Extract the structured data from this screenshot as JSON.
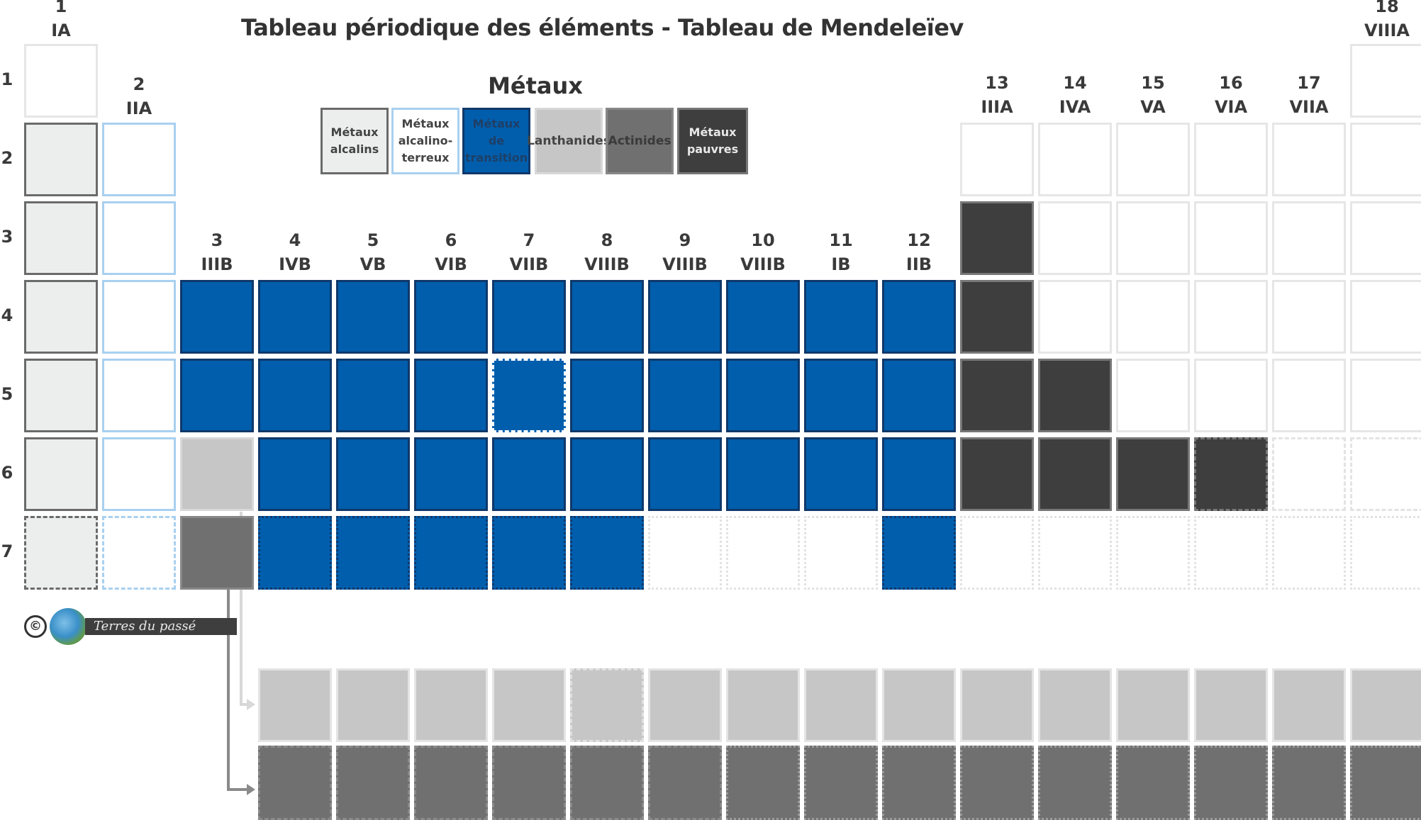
{
  "title": "Tableau périodique des éléments - Tableau de Mendeleïev",
  "legend": {
    "heading": "Métaux",
    "items": [
      {
        "key": "alkali",
        "label": "Métaux alcalins"
      },
      {
        "key": "alkaline_earth",
        "label": "Métaux alcalino-terreux"
      },
      {
        "key": "transition",
        "label": "Métaux de transition"
      },
      {
        "key": "lanthanides",
        "label": "Lanthanides"
      },
      {
        "key": "actinides",
        "label": "Actinides"
      },
      {
        "key": "poor",
        "label": "Métaux pauvres"
      }
    ]
  },
  "group_headers": [
    {
      "num": "1",
      "roman": "IA"
    },
    {
      "num": "2",
      "roman": "IIA"
    },
    {
      "num": "3",
      "roman": "IIIB"
    },
    {
      "num": "4",
      "roman": "IVB"
    },
    {
      "num": "5",
      "roman": "VB"
    },
    {
      "num": "6",
      "roman": "VIB"
    },
    {
      "num": "7",
      "roman": "VIIB"
    },
    {
      "num": "8",
      "roman": "VIIIB"
    },
    {
      "num": "9",
      "roman": "VIIIB"
    },
    {
      "num": "10",
      "roman": "VIIIB"
    },
    {
      "num": "11",
      "roman": "IB"
    },
    {
      "num": "12",
      "roman": "IIB"
    },
    {
      "num": "13",
      "roman": "IIIA"
    },
    {
      "num": "14",
      "roman": "IVA"
    },
    {
      "num": "15",
      "roman": "VA"
    },
    {
      "num": "16",
      "roman": "VIA"
    },
    {
      "num": "17",
      "roman": "VIIA"
    },
    {
      "num": "18",
      "roman": "VIIIA"
    }
  ],
  "periods": [
    "1",
    "2",
    "3",
    "4",
    "5",
    "6",
    "7"
  ],
  "category_colors": {
    "alkali": "#eceeed",
    "alkaline_earth": "#ffffff",
    "transition": "#005eac",
    "lanthanides": "#c5c6c5",
    "actinides": "#707070",
    "poor": "#3e3e3e",
    "other": "#ffffff"
  },
  "cells": [
    {
      "period": 1,
      "group": 1,
      "category": "other",
      "style": "solid"
    },
    {
      "period": 1,
      "group": 18,
      "category": "other",
      "style": "solid"
    },
    {
      "period": 2,
      "group": 1,
      "category": "alkali",
      "style": "solid"
    },
    {
      "period": 2,
      "group": 2,
      "category": "alkaline_earth",
      "style": "solid"
    },
    {
      "period": 2,
      "group": 13,
      "category": "other",
      "style": "solid"
    },
    {
      "period": 2,
      "group": 14,
      "category": "other",
      "style": "solid"
    },
    {
      "period": 2,
      "group": 15,
      "category": "other",
      "style": "solid"
    },
    {
      "period": 2,
      "group": 16,
      "category": "other",
      "style": "solid"
    },
    {
      "period": 2,
      "group": 17,
      "category": "other",
      "style": "solid"
    },
    {
      "period": 2,
      "group": 18,
      "category": "other",
      "style": "solid"
    },
    {
      "period": 3,
      "group": 1,
      "category": "alkali",
      "style": "solid"
    },
    {
      "period": 3,
      "group": 2,
      "category": "alkaline_earth",
      "style": "solid"
    },
    {
      "period": 3,
      "group": 13,
      "category": "poor",
      "style": "solid"
    },
    {
      "period": 3,
      "group": 14,
      "category": "other",
      "style": "solid"
    },
    {
      "period": 3,
      "group": 15,
      "category": "other",
      "style": "solid"
    },
    {
      "period": 3,
      "group": 16,
      "category": "other",
      "style": "solid"
    },
    {
      "period": 3,
      "group": 17,
      "category": "other",
      "style": "solid"
    },
    {
      "period": 3,
      "group": 18,
      "category": "other",
      "style": "solid"
    },
    {
      "period": 4,
      "group": 1,
      "category": "alkali",
      "style": "solid"
    },
    {
      "period": 4,
      "group": 2,
      "category": "alkaline_earth",
      "style": "solid"
    },
    {
      "period": 4,
      "group": 3,
      "category": "transition",
      "style": "solid"
    },
    {
      "period": 4,
      "group": 4,
      "category": "transition",
      "style": "solid"
    },
    {
      "period": 4,
      "group": 5,
      "category": "transition",
      "style": "solid"
    },
    {
      "period": 4,
      "group": 6,
      "category": "transition",
      "style": "solid"
    },
    {
      "period": 4,
      "group": 7,
      "category": "transition",
      "style": "solid"
    },
    {
      "period": 4,
      "group": 8,
      "category": "transition",
      "style": "solid"
    },
    {
      "period": 4,
      "group": 9,
      "category": "transition",
      "style": "solid"
    },
    {
      "period": 4,
      "group": 10,
      "category": "transition",
      "style": "solid"
    },
    {
      "period": 4,
      "group": 11,
      "category": "transition",
      "style": "solid"
    },
    {
      "period": 4,
      "group": 12,
      "category": "transition",
      "style": "solid"
    },
    {
      "period": 4,
      "group": 13,
      "category": "poor",
      "style": "solid"
    },
    {
      "period": 4,
      "group": 14,
      "category": "other",
      "style": "solid"
    },
    {
      "period": 4,
      "group": 15,
      "category": "other",
      "style": "solid"
    },
    {
      "period": 4,
      "group": 16,
      "category": "other",
      "style": "solid"
    },
    {
      "period": 4,
      "group": 17,
      "category": "other",
      "style": "solid"
    },
    {
      "period": 4,
      "group": 18,
      "category": "other",
      "style": "solid"
    },
    {
      "period": 5,
      "group": 1,
      "category": "alkali",
      "style": "solid"
    },
    {
      "period": 5,
      "group": 2,
      "category": "alkaline_earth",
      "style": "solid"
    },
    {
      "period": 5,
      "group": 3,
      "category": "transition",
      "style": "solid"
    },
    {
      "period": 5,
      "group": 4,
      "category": "transition",
      "style": "solid"
    },
    {
      "period": 5,
      "group": 5,
      "category": "transition",
      "style": "solid"
    },
    {
      "period": 5,
      "group": 6,
      "category": "transition",
      "style": "solid"
    },
    {
      "period": 5,
      "group": 7,
      "category": "transition",
      "style": "dashed"
    },
    {
      "period": 5,
      "group": 8,
      "category": "transition",
      "style": "solid"
    },
    {
      "period": 5,
      "group": 9,
      "category": "transition",
      "style": "solid"
    },
    {
      "period": 5,
      "group": 10,
      "category": "transition",
      "style": "solid"
    },
    {
      "period": 5,
      "group": 11,
      "category": "transition",
      "style": "solid"
    },
    {
      "period": 5,
      "group": 12,
      "category": "transition",
      "style": "solid"
    },
    {
      "period": 5,
      "group": 13,
      "category": "poor",
      "style": "solid"
    },
    {
      "period": 5,
      "group": 14,
      "category": "poor",
      "style": "solid"
    },
    {
      "period": 5,
      "group": 15,
      "category": "other",
      "style": "solid"
    },
    {
      "period": 5,
      "group": 16,
      "category": "other",
      "style": "solid"
    },
    {
      "period": 5,
      "group": 17,
      "category": "other",
      "style": "solid"
    },
    {
      "period": 5,
      "group": 18,
      "category": "other",
      "style": "solid"
    },
    {
      "period": 6,
      "group": 1,
      "category": "alkali",
      "style": "solid"
    },
    {
      "period": 6,
      "group": 2,
      "category": "alkaline_earth",
      "style": "solid"
    },
    {
      "period": 6,
      "group": 3,
      "category": "lanthanides",
      "style": "solid"
    },
    {
      "period": 6,
      "group": 4,
      "category": "transition",
      "style": "solid"
    },
    {
      "period": 6,
      "group": 5,
      "category": "transition",
      "style": "solid"
    },
    {
      "period": 6,
      "group": 6,
      "category": "transition",
      "style": "solid"
    },
    {
      "period": 6,
      "group": 7,
      "category": "transition",
      "style": "solid"
    },
    {
      "period": 6,
      "group": 8,
      "category": "transition",
      "style": "solid"
    },
    {
      "period": 6,
      "group": 9,
      "category": "transition",
      "style": "solid"
    },
    {
      "period": 6,
      "group": 10,
      "category": "transition",
      "style": "solid"
    },
    {
      "period": 6,
      "group": 11,
      "category": "transition",
      "style": "solid"
    },
    {
      "period": 6,
      "group": 12,
      "category": "transition",
      "style": "solid"
    },
    {
      "period": 6,
      "group": 13,
      "category": "poor",
      "style": "solid"
    },
    {
      "period": 6,
      "group": 14,
      "category": "poor",
      "style": "solid"
    },
    {
      "period": 6,
      "group": 15,
      "category": "poor",
      "style": "solid"
    },
    {
      "period": 6,
      "group": 16,
      "category": "poor",
      "style": "dashed"
    },
    {
      "period": 6,
      "group": 17,
      "category": "other",
      "style": "dashed"
    },
    {
      "period": 6,
      "group": 18,
      "category": "other",
      "style": "dashed"
    },
    {
      "period": 7,
      "group": 1,
      "category": "alkali",
      "style": "dashed"
    },
    {
      "period": 7,
      "group": 2,
      "category": "alkaline_earth",
      "style": "dashed"
    },
    {
      "period": 7,
      "group": 3,
      "category": "actinides",
      "style": "solid"
    },
    {
      "period": 7,
      "group": 4,
      "category": "transition",
      "style": "dotted"
    },
    {
      "period": 7,
      "group": 5,
      "category": "transition",
      "style": "dotted"
    },
    {
      "period": 7,
      "group": 6,
      "category": "transition",
      "style": "dotted"
    },
    {
      "period": 7,
      "group": 7,
      "category": "transition",
      "style": "dotted"
    },
    {
      "period": 7,
      "group": 8,
      "category": "transition",
      "style": "dotted"
    },
    {
      "period": 7,
      "group": 9,
      "category": "other",
      "style": "dotted"
    },
    {
      "period": 7,
      "group": 10,
      "category": "other",
      "style": "dotted"
    },
    {
      "period": 7,
      "group": 11,
      "category": "other",
      "style": "dotted"
    },
    {
      "period": 7,
      "group": 12,
      "category": "transition",
      "style": "dotted"
    },
    {
      "period": 7,
      "group": 13,
      "category": "other",
      "style": "dotted"
    },
    {
      "period": 7,
      "group": 14,
      "category": "other",
      "style": "dotted"
    },
    {
      "period": 7,
      "group": 15,
      "category": "other",
      "style": "dotted"
    },
    {
      "period": 7,
      "group": 16,
      "category": "other",
      "style": "dotted"
    },
    {
      "period": 7,
      "group": 17,
      "category": "other",
      "style": "dotted"
    },
    {
      "period": 7,
      "group": 18,
      "category": "other",
      "style": "dotted"
    }
  ],
  "f_block": {
    "lanthanides_count": 15,
    "actinides_count": 15,
    "lanthanide_dashed_index": 4,
    "actinide_dotted_from_index": 6
  },
  "copyright": {
    "symbol": "©",
    "text": "Terres du passé"
  }
}
